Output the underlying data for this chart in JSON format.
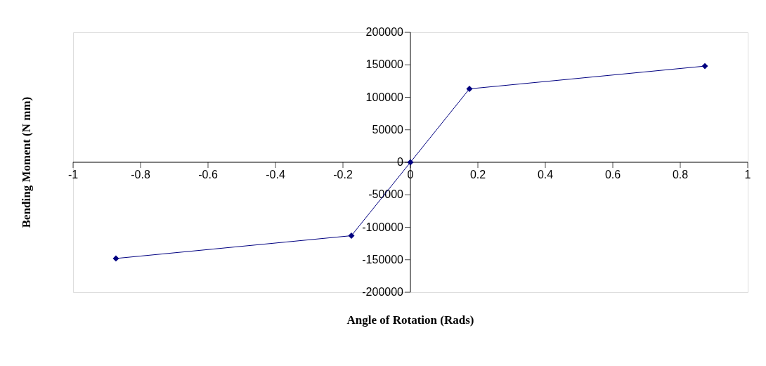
{
  "chart_data": {
    "type": "line",
    "xlabel": "Angle of Rotation (Rads)",
    "ylabel": "Bending Moment (N mm)",
    "series": [
      {
        "color": "#000080",
        "x": [
          -0.873,
          -0.175,
          0,
          0.175,
          0.873
        ],
        "values": [
          -148000,
          -113000,
          0,
          113000,
          148000
        ]
      }
    ],
    "xlim": [
      -1,
      1
    ],
    "xticks": [
      -1,
      -0.8,
      -0.6,
      -0.4,
      -0.2,
      0,
      0.2,
      0.4,
      0.6,
      0.8,
      1
    ],
    "ylim": [
      -200000,
      200000
    ],
    "yticks": [
      -200000,
      -150000,
      -100000,
      -50000,
      0,
      50000,
      100000,
      150000,
      200000
    ],
    "marker": "diamond",
    "line_style": "solid",
    "grid": false
  }
}
